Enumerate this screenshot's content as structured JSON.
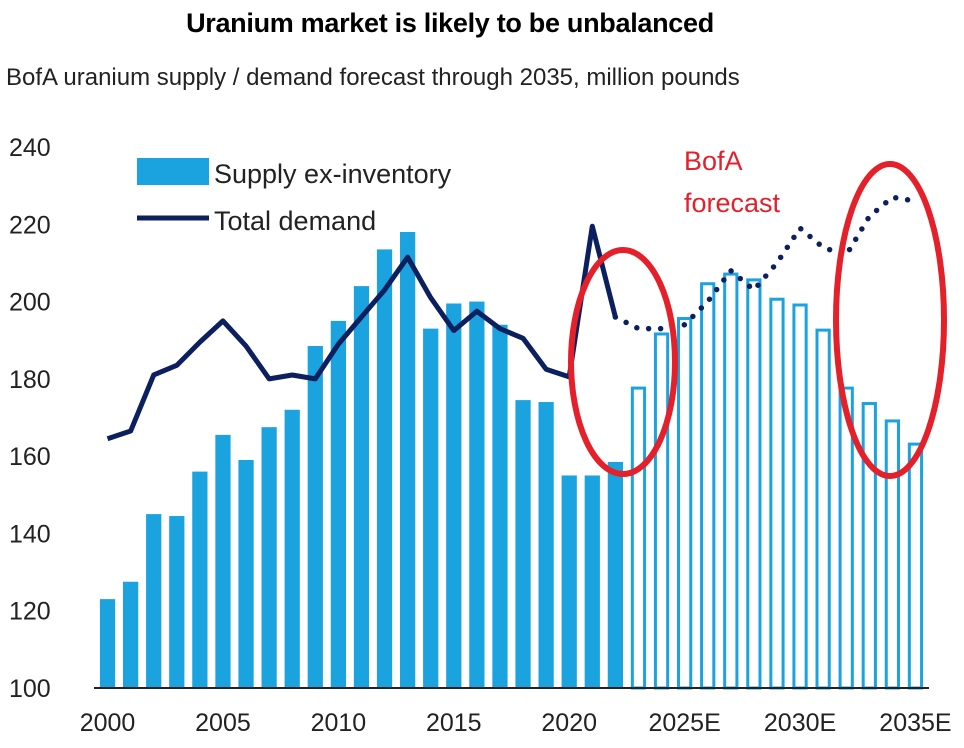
{
  "colors": {
    "bar_fill": "#1aa3df",
    "bar_forecast_stroke": "#1aa3df",
    "demand_line": "#0c1f5e",
    "highlight": "#e4202a",
    "axis": "#222222"
  },
  "chart_data": {
    "type": "bar",
    "title": "Uranium market is likely to be unbalanced",
    "subtitle": "BofA uranium supply / demand forecast through 2035, million pounds",
    "xlabel": "",
    "ylabel": "",
    "ylim": [
      100,
      240
    ],
    "yticks": [
      "240",
      "220",
      "200",
      "180",
      "160",
      "140",
      "120",
      "100"
    ],
    "xtick_labels": [
      "2000",
      "2005",
      "2010",
      "2015",
      "2020",
      "2025E",
      "2030E",
      "2035E"
    ],
    "categories": [
      "2000",
      "2001",
      "2002",
      "2003",
      "2004",
      "2005",
      "2006",
      "2007",
      "2008",
      "2009",
      "2010",
      "2011",
      "2012",
      "2013",
      "2014",
      "2015",
      "2016",
      "2017",
      "2018",
      "2019",
      "2020",
      "2021",
      "2022",
      "2023E",
      "2024E",
      "2025E",
      "2026E",
      "2027E",
      "2028E",
      "2029E",
      "2030E",
      "2031E",
      "2032E",
      "2033E",
      "2034E",
      "2035E"
    ],
    "series": [
      {
        "name": "Supply ex-inventory",
        "kind": "bar",
        "values": [
          123,
          127.5,
          145,
          144.5,
          156,
          165.5,
          159,
          167.5,
          172,
          188.5,
          195,
          204,
          213.5,
          218,
          193,
          199.5,
          200,
          194,
          174.5,
          174,
          155,
          155,
          158.5,
          178,
          192,
          196,
          205,
          207.5,
          206,
          201,
          199.5,
          193,
          178,
          174,
          169.5,
          163.5
        ],
        "forecast_from": "2023E"
      },
      {
        "name": "Total demand",
        "kind": "line",
        "values": [
          164.5,
          166.5,
          181,
          183.5,
          189.5,
          195,
          188.5,
          180,
          181,
          180,
          189,
          196,
          203,
          211.5,
          201,
          192.5,
          197.5,
          193,
          190.5,
          182.5,
          180.5,
          219.5,
          196,
          null,
          null,
          null,
          null,
          null,
          null,
          null,
          null,
          null,
          null,
          null,
          null,
          null
        ],
        "forecast_dotted": {
          "categories": [
            "2022",
            "2023E",
            "2024E",
            "2025E",
            "2026E",
            "2027E",
            "2028E",
            "2029E",
            "2030E",
            "2031E",
            "2032E",
            "2033E",
            "2034E",
            "2035E"
          ],
          "values": [
            196,
            193,
            193,
            194,
            200,
            208,
            203,
            210,
            219,
            214,
            212,
            222,
            227,
            226
          ]
        }
      }
    ],
    "legend": [
      "Supply ex-inventory",
      "Total demand"
    ],
    "legend_position": "top-left",
    "annotations": [
      {
        "text": "BofA",
        "line": 1
      },
      {
        "text": "forecast",
        "line": 2
      }
    ]
  }
}
